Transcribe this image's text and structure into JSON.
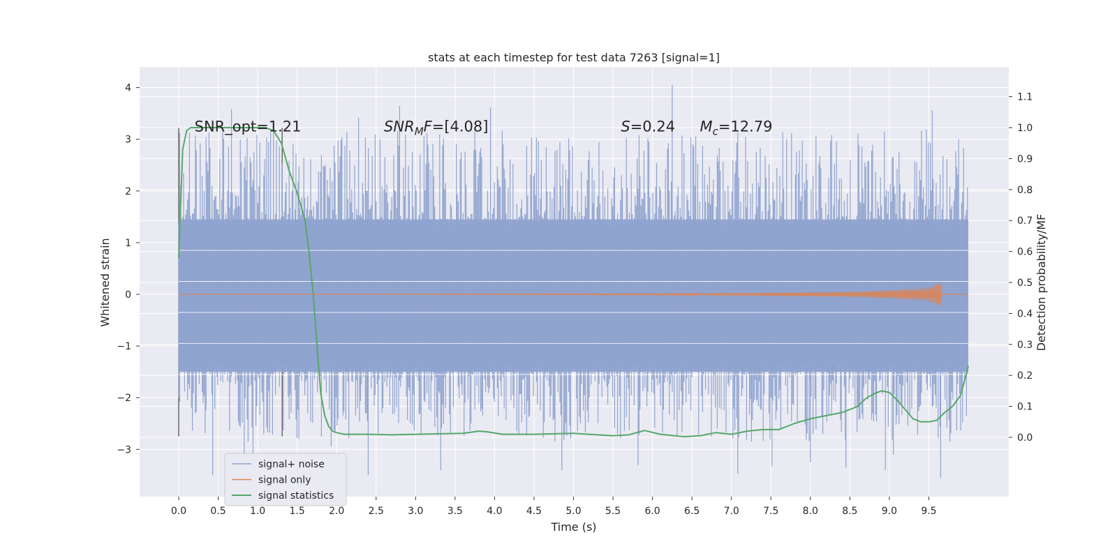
{
  "chart_data": {
    "type": "line",
    "title": "stats at each timestep for test data 7263 [signal=1]",
    "xlabel": "Time (s)",
    "ylabel": "Whitened strain",
    "ylabel_right": "Detection probability/MF",
    "xlim": [
      -0.5,
      10.4
    ],
    "ylim": [
      -3.9,
      4.4
    ],
    "ylim_right": [
      -0.2,
      1.19
    ],
    "x_ticks": [
      0.0,
      0.5,
      1.0,
      1.5,
      2.0,
      2.5,
      3.0,
      3.5,
      4.0,
      4.5,
      5.0,
      5.5,
      6.0,
      6.5,
      7.0,
      7.5,
      8.0,
      8.5,
      9.0,
      9.5
    ],
    "x_tick_labels": [
      "0.0",
      "0.5",
      "1.0",
      "1.5",
      "2.0",
      "2.5",
      "3.0",
      "3.5",
      "4.0",
      "4.5",
      "5.0",
      "5.5",
      "6.0",
      "6.5",
      "7.0",
      "7.5",
      "8.0",
      "8.5",
      "9.0",
      "9.5"
    ],
    "y_ticks": [
      -3,
      -2,
      -1,
      0,
      1,
      2,
      3,
      4
    ],
    "y_tick_labels": [
      "−3",
      "−2",
      "−1",
      "0",
      "1",
      "2",
      "3",
      "4"
    ],
    "y_ticks_right": [
      0.0,
      0.1,
      0.2,
      0.3,
      0.4,
      0.5,
      0.6,
      0.7,
      0.8,
      0.9,
      1.0,
      1.1
    ],
    "y_tick_labels_right": [
      "0.0",
      "0.1",
      "0.2",
      "0.3",
      "0.4",
      "0.5",
      "0.6",
      "0.7",
      "0.8",
      "0.9",
      "1.0",
      "1.1"
    ],
    "grid": true,
    "legend_position": "bottom-left",
    "colors": {
      "background": "#eaeaf2",
      "noise": "#8fa3cf",
      "signal": "#dd8452",
      "stats": "#55a868",
      "vline": "#555555"
    },
    "vertical_markers": [
      0.0,
      1.31
    ],
    "vertical_marker_range": [
      -2.75,
      3.22
    ],
    "series": [
      {
        "name": "signal+ noise",
        "kind": "noise-band",
        "x_range": [
          0.0,
          10.0
        ],
        "band": [
          -1.5,
          1.45
        ],
        "peaks_max": 4.05,
        "peaks_min": -3.55
      },
      {
        "name": "signal only",
        "kind": "chirp",
        "x_range": [
          0.0,
          10.0
        ],
        "values_x": [
          0.0,
          6.0,
          7.0,
          8.0,
          8.5,
          9.0,
          9.3,
          9.5,
          9.65,
          9.67,
          10.0
        ],
        "amplitude": [
          0.0,
          0.01,
          0.02,
          0.04,
          0.05,
          0.08,
          0.11,
          0.15,
          0.22,
          0.0,
          0.0
        ]
      },
      {
        "name": "signal statistics",
        "kind": "line",
        "axis": "right",
        "x": [
          0.0,
          0.05,
          0.1,
          0.15,
          0.2,
          0.4,
          0.7,
          1.0,
          1.1,
          1.2,
          1.3,
          1.4,
          1.5,
          1.6,
          1.65,
          1.7,
          1.75,
          1.8,
          1.85,
          1.9,
          1.95,
          2.0,
          2.1,
          2.2,
          2.4,
          2.7,
          3.0,
          3.4,
          3.6,
          3.8,
          3.9,
          4.1,
          4.5,
          5.0,
          5.5,
          5.7,
          5.9,
          6.1,
          6.4,
          6.6,
          6.8,
          7.0,
          7.2,
          7.4,
          7.6,
          7.8,
          8.0,
          8.2,
          8.4,
          8.6,
          8.7,
          8.8,
          8.9,
          9.0,
          9.1,
          9.2,
          9.3,
          9.4,
          9.5,
          9.6,
          9.7,
          9.8,
          9.9,
          9.95,
          10.0
        ],
        "values": [
          0.58,
          0.93,
          0.99,
          1.0,
          1.0,
          1.0,
          1.0,
          1.0,
          1.0,
          0.99,
          0.95,
          0.86,
          0.79,
          0.7,
          0.6,
          0.47,
          0.3,
          0.14,
          0.07,
          0.035,
          0.02,
          0.015,
          0.01,
          0.01,
          0.01,
          0.008,
          0.01,
          0.012,
          0.013,
          0.02,
          0.018,
          0.01,
          0.01,
          0.013,
          0.005,
          0.008,
          0.022,
          0.01,
          0.002,
          0.005,
          0.015,
          0.01,
          0.02,
          0.025,
          0.025,
          0.045,
          0.06,
          0.07,
          0.08,
          0.1,
          0.125,
          0.14,
          0.15,
          0.145,
          0.12,
          0.09,
          0.06,
          0.05,
          0.05,
          0.055,
          0.08,
          0.1,
          0.135,
          0.18,
          0.23
        ]
      }
    ],
    "annotations": {
      "snr_opt": {
        "x": 0.2,
        "y": 3.15,
        "text": "SNR_opt=1.21"
      },
      "snr_mf": {
        "x": 2.6,
        "y": 3.15,
        "base": "SNR",
        "sub": "M",
        "tail": "F",
        "value": "=[4.08]"
      },
      "s": {
        "x": 5.6,
        "y": 3.15,
        "base": "S",
        "value": "=0.24"
      },
      "mc": {
        "x": 6.6,
        "y": 3.15,
        "base": "M",
        "sub": "c",
        "value": "=12.79"
      }
    },
    "legend": [
      "signal+ noise",
      "signal only",
      "signal statistics"
    ]
  }
}
